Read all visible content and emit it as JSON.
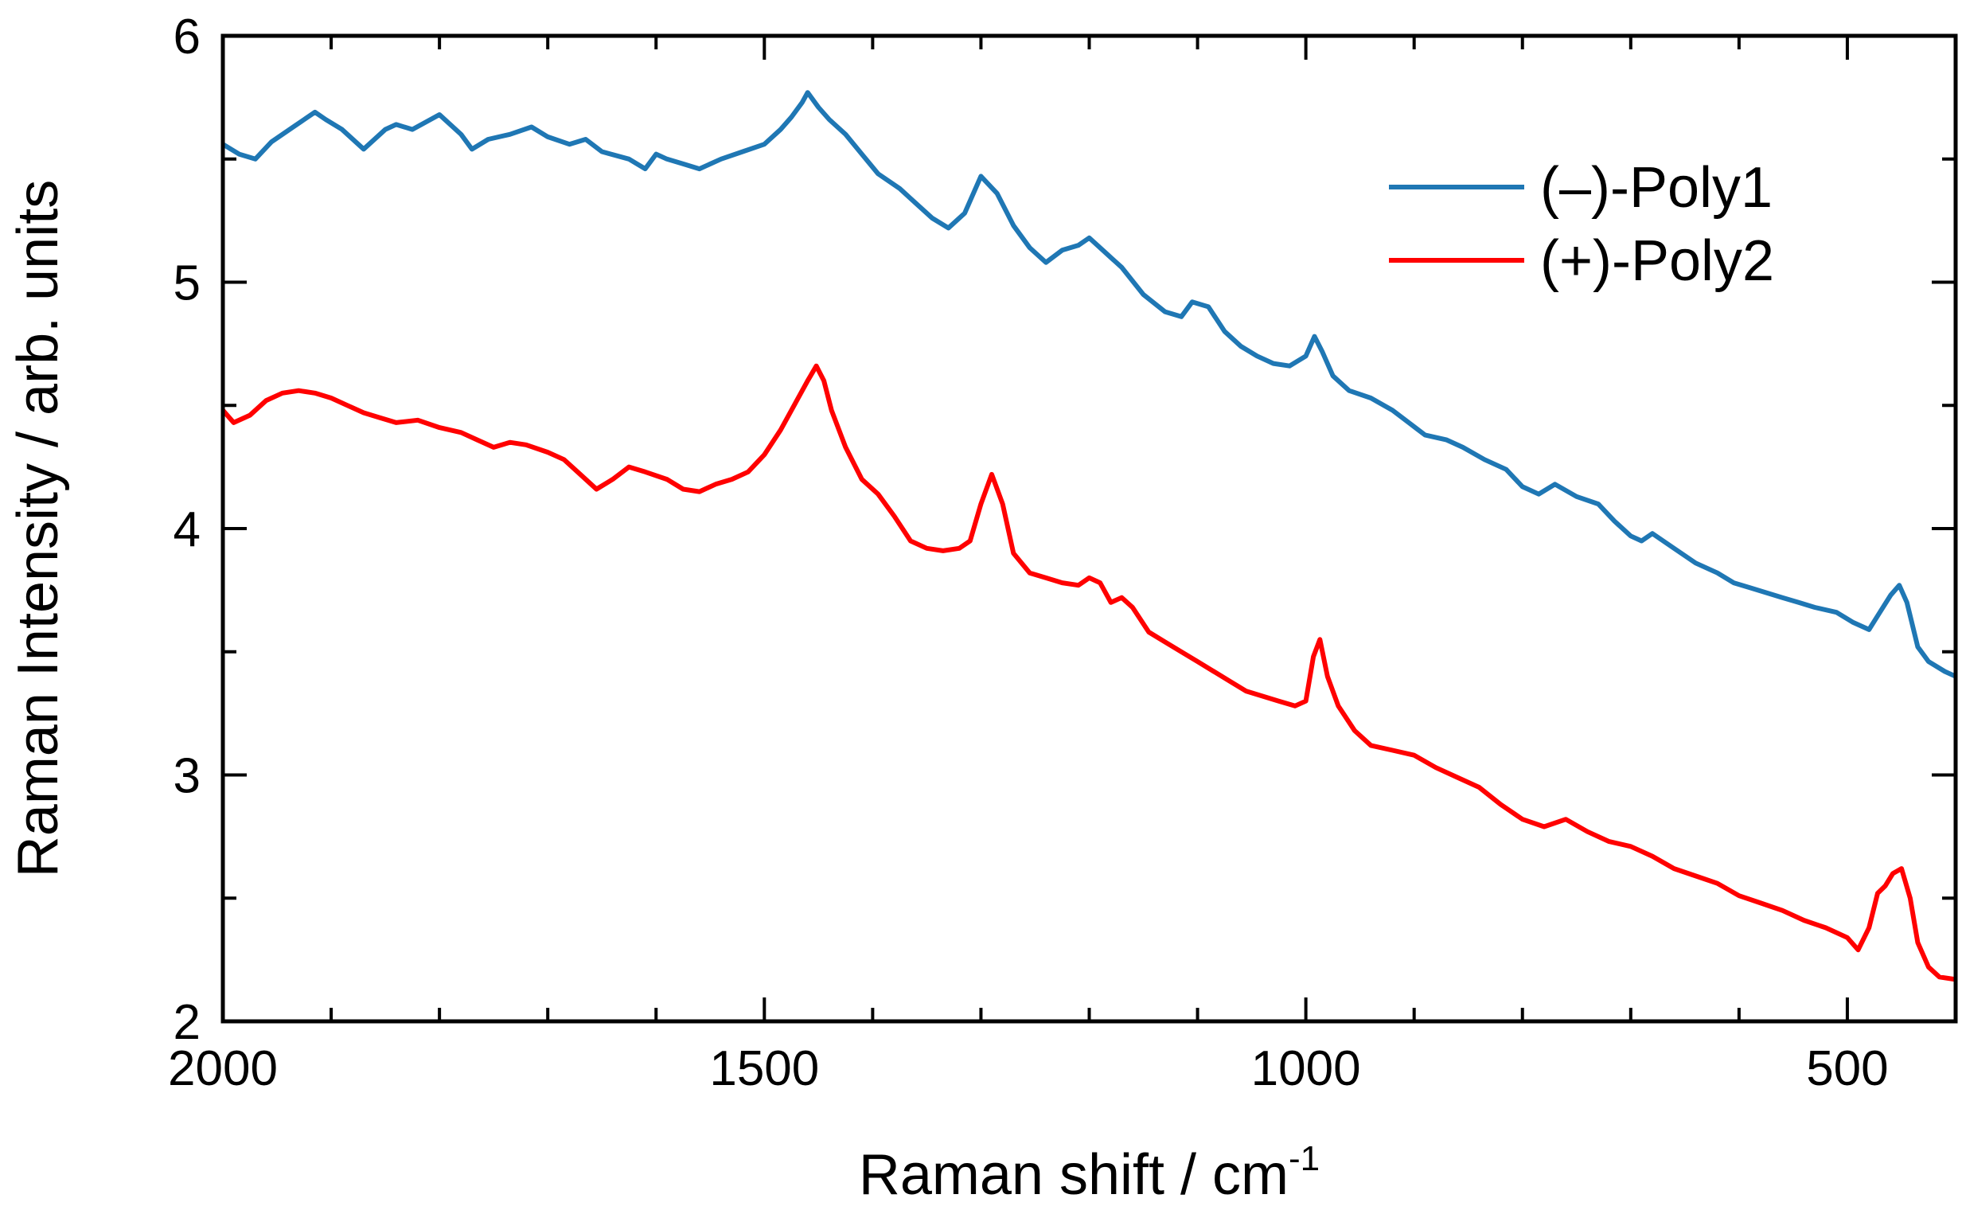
{
  "chart_data": {
    "type": "line",
    "title": "",
    "xlabel": "Raman shift / cm",
    "xlabel_sup": "-1",
    "ylabel": "Raman Intensity / arb. units",
    "xlim": [
      2000,
      400
    ],
    "ylim": [
      2,
      6
    ],
    "x_reversed": true,
    "xticks": [
      2000,
      1500,
      1000,
      500
    ],
    "xtick_labels": [
      "2000",
      "1500",
      "1000",
      "500"
    ],
    "x_minor_step": 100,
    "yticks": [
      2,
      3,
      4,
      5,
      6
    ],
    "ytick_labels": [
      "2",
      "3",
      "4",
      "5",
      "6"
    ],
    "y_minor_step": 0.5,
    "grid": false,
    "legend_position": "top-right",
    "series": [
      {
        "name": "(–)-Poly1",
        "color": "#1f77b4",
        "x": [
          2000,
          1985,
          1970,
          1955,
          1935,
          1915,
          1905,
          1890,
          1870,
          1850,
          1840,
          1825,
          1800,
          1780,
          1770,
          1755,
          1735,
          1715,
          1700,
          1680,
          1665,
          1650,
          1625,
          1610,
          1600,
          1590,
          1575,
          1560,
          1540,
          1520,
          1500,
          1485,
          1475,
          1465,
          1460,
          1450,
          1440,
          1425,
          1410,
          1395,
          1375,
          1360,
          1345,
          1330,
          1315,
          1300,
          1285,
          1270,
          1255,
          1240,
          1225,
          1210,
          1200,
          1185,
          1170,
          1150,
          1130,
          1115,
          1105,
          1090,
          1075,
          1060,
          1045,
          1030,
          1015,
          1000,
          992,
          985,
          975,
          960,
          940,
          920,
          905,
          890,
          870,
          855,
          835,
          815,
          800,
          785,
          770,
          750,
          730,
          715,
          700,
          690,
          680,
          660,
          640,
          620,
          605,
          590,
          575,
          560,
          545,
          530,
          510,
          495,
          480,
          470,
          460,
          452,
          445,
          435,
          425,
          410,
          400
        ],
        "y": [
          5.56,
          5.52,
          5.5,
          5.57,
          5.63,
          5.69,
          5.66,
          5.62,
          5.54,
          5.62,
          5.64,
          5.62,
          5.68,
          5.6,
          5.54,
          5.58,
          5.6,
          5.63,
          5.59,
          5.56,
          5.58,
          5.53,
          5.5,
          5.46,
          5.52,
          5.5,
          5.48,
          5.46,
          5.5,
          5.53,
          5.56,
          5.62,
          5.67,
          5.73,
          5.77,
          5.71,
          5.66,
          5.6,
          5.52,
          5.44,
          5.38,
          5.32,
          5.26,
          5.22,
          5.28,
          5.43,
          5.36,
          5.23,
          5.14,
          5.08,
          5.13,
          5.15,
          5.18,
          5.12,
          5.06,
          4.95,
          4.88,
          4.86,
          4.92,
          4.9,
          4.8,
          4.74,
          4.7,
          4.67,
          4.66,
          4.7,
          4.78,
          4.72,
          4.62,
          4.56,
          4.53,
          4.48,
          4.43,
          4.38,
          4.36,
          4.33,
          4.28,
          4.24,
          4.17,
          4.14,
          4.18,
          4.13,
          4.1,
          4.03,
          3.97,
          3.95,
          3.98,
          3.92,
          3.86,
          3.82,
          3.78,
          3.76,
          3.74,
          3.72,
          3.7,
          3.68,
          3.66,
          3.62,
          3.59,
          3.66,
          3.73,
          3.77,
          3.7,
          3.52,
          3.46,
          3.42,
          3.4
        ]
      },
      {
        "name": "(+)-Poly2",
        "color": "#ff0000",
        "x": [
          2000,
          1990,
          1975,
          1960,
          1945,
          1930,
          1915,
          1900,
          1885,
          1870,
          1855,
          1840,
          1820,
          1800,
          1780,
          1765,
          1750,
          1735,
          1720,
          1700,
          1685,
          1670,
          1655,
          1640,
          1625,
          1610,
          1590,
          1575,
          1560,
          1545,
          1530,
          1515,
          1500,
          1485,
          1470,
          1460,
          1452,
          1445,
          1438,
          1425,
          1410,
          1395,
          1380,
          1365,
          1350,
          1335,
          1320,
          1310,
          1300,
          1290,
          1280,
          1270,
          1255,
          1240,
          1225,
          1210,
          1200,
          1190,
          1180,
          1170,
          1160,
          1145,
          1130,
          1115,
          1100,
          1085,
          1070,
          1055,
          1040,
          1025,
          1010,
          1000,
          993,
          987,
          980,
          970,
          955,
          940,
          920,
          900,
          880,
          860,
          840,
          820,
          800,
          780,
          760,
          740,
          720,
          700,
          680,
          660,
          640,
          620,
          600,
          580,
          560,
          540,
          520,
          500,
          490,
          480,
          472,
          465,
          458,
          450,
          442,
          435,
          425,
          415,
          400
        ],
        "y": [
          4.48,
          4.43,
          4.46,
          4.52,
          4.55,
          4.56,
          4.55,
          4.53,
          4.5,
          4.47,
          4.45,
          4.43,
          4.44,
          4.41,
          4.39,
          4.36,
          4.33,
          4.35,
          4.34,
          4.31,
          4.28,
          4.22,
          4.16,
          4.2,
          4.25,
          4.23,
          4.2,
          4.16,
          4.15,
          4.18,
          4.2,
          4.23,
          4.3,
          4.4,
          4.52,
          4.6,
          4.66,
          4.6,
          4.48,
          4.33,
          4.2,
          4.14,
          4.05,
          3.95,
          3.92,
          3.91,
          3.92,
          3.95,
          4.1,
          4.22,
          4.1,
          3.9,
          3.82,
          3.8,
          3.78,
          3.77,
          3.8,
          3.78,
          3.7,
          3.72,
          3.68,
          3.58,
          3.54,
          3.5,
          3.46,
          3.42,
          3.38,
          3.34,
          3.32,
          3.3,
          3.28,
          3.3,
          3.48,
          3.55,
          3.4,
          3.28,
          3.18,
          3.12,
          3.1,
          3.08,
          3.03,
          2.99,
          2.95,
          2.88,
          2.82,
          2.79,
          2.82,
          2.77,
          2.73,
          2.71,
          2.67,
          2.62,
          2.59,
          2.56,
          2.51,
          2.48,
          2.45,
          2.41,
          2.38,
          2.34,
          2.29,
          2.38,
          2.52,
          2.55,
          2.6,
          2.62,
          2.5,
          2.32,
          2.22,
          2.18,
          2.17
        ]
      }
    ]
  }
}
